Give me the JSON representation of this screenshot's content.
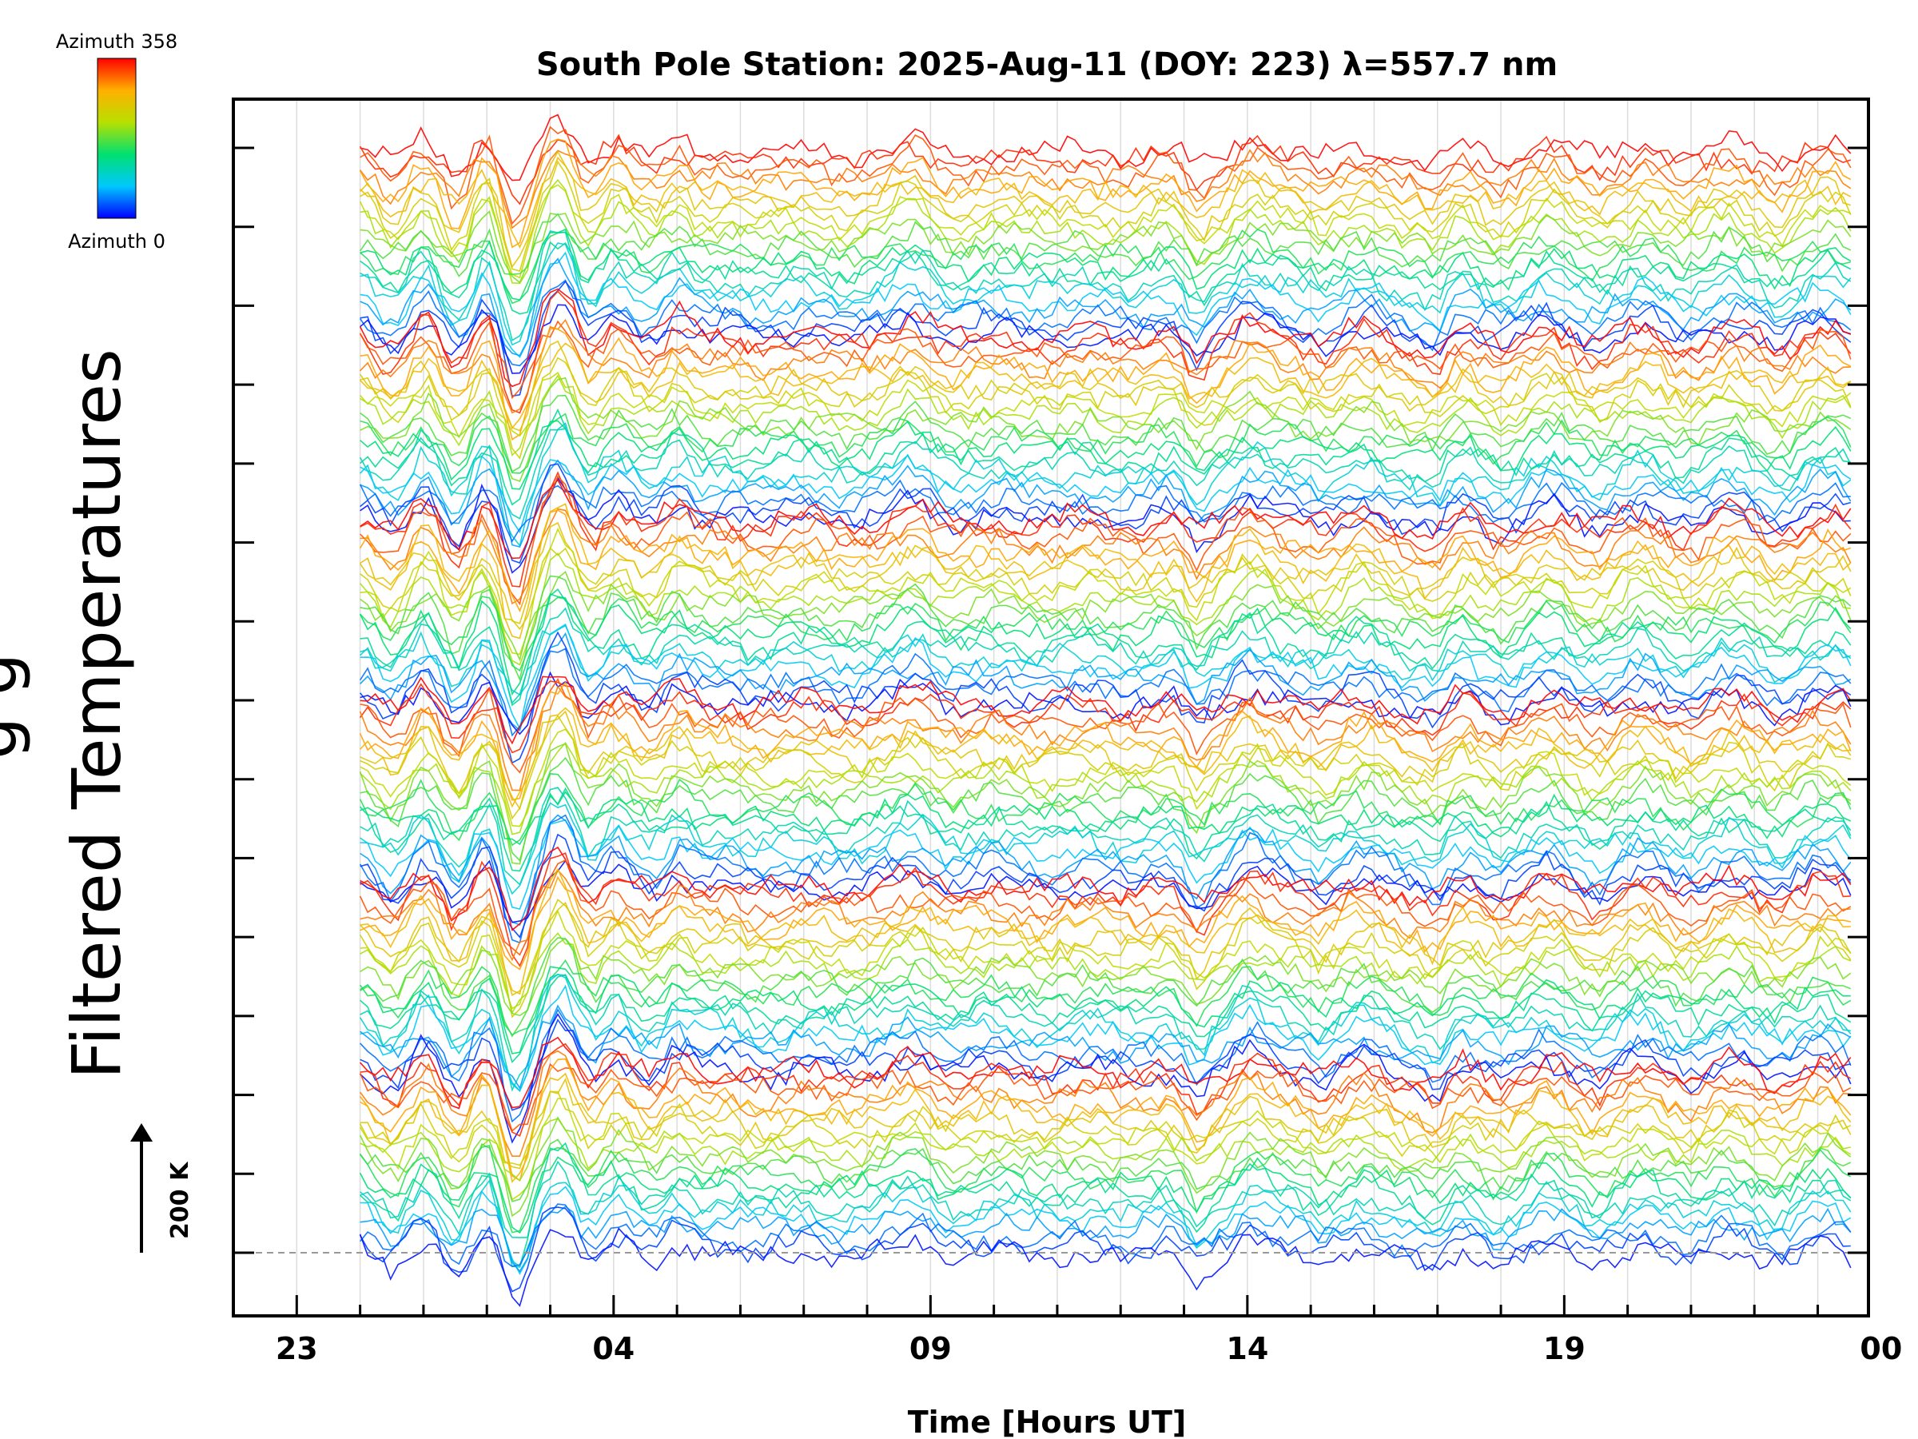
{
  "chart_data": {
    "type": "line",
    "title": "South Pole Station: 2025-Aug-11 (DOY: 223) λ=557.7 nm",
    "xlabel": "Time [Hours UT]",
    "ylabel": "Filtered Temperatures",
    "ylabel_clipped": "g g",
    "x_tick_labels": [
      "23",
      "04",
      "09",
      "14",
      "19",
      "00"
    ],
    "x_range_hours": [
      22,
      47.8
    ],
    "data_start_hour": 24,
    "data_end_hour": 47.6,
    "colorbar": {
      "top_label": "Azimuth 358",
      "bottom_label": "Azimuth 0",
      "azimuth_range": [
        0,
        358
      ],
      "colors": [
        "#0000ff",
        "#00c8ff",
        "#00e070",
        "#b8e000",
        "#ffb000",
        "#ff0000"
      ]
    },
    "scale_bar": {
      "label": "200 K",
      "value_k": 200
    },
    "stack_groups": 6,
    "traces_per_group": 22,
    "y_ticks_count": 15,
    "baseline": "dashed"
  }
}
